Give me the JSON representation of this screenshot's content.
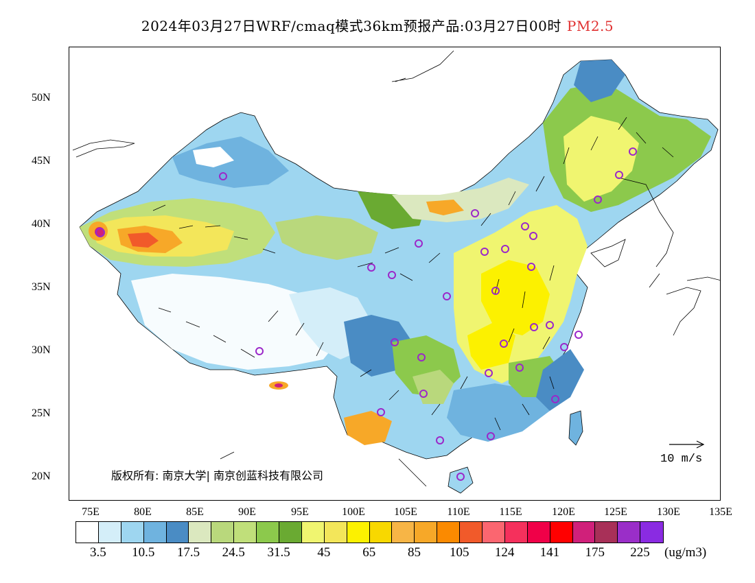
{
  "title": {
    "main": "2024年03月27日WRF/cmaq模式36km预报产品:03月27日00时",
    "variable": "PM2.5"
  },
  "lat_labels": [
    "50N",
    "45N",
    "40N",
    "35N",
    "30N",
    "25N",
    "20N"
  ],
  "lon_labels": [
    "75E",
    "80E",
    "85E",
    "90E",
    "95E",
    "100E",
    "105E",
    "110E",
    "115E",
    "120E",
    "125E",
    "130E",
    "135E"
  ],
  "colorbar": {
    "colors": [
      "#ffffff",
      "#d4eef9",
      "#9ed6f0",
      "#6fb3df",
      "#4a8cc4",
      "#dbe8bf",
      "#b9d87c",
      "#c0df7a",
      "#8cc94c",
      "#6aaa32",
      "#f0f570",
      "#f3e65a",
      "#fcf100",
      "#f8d800",
      "#f7b546",
      "#f7a828",
      "#fb8a00",
      "#f15a2a",
      "#fb6670",
      "#f5305c",
      "#f00048",
      "#ff0000",
      "#d0207a",
      "#a83058",
      "#9a2ec8",
      "#8a2be2"
    ],
    "labels": [
      "3.5",
      "10.5",
      "17.5",
      "24.5",
      "31.5",
      "45",
      "65",
      "85",
      "105",
      "124",
      "141",
      "175",
      "225"
    ],
    "unit": "(ug/m3)"
  },
  "copyright": "版权所有: 南京大学| 南京创蓝科技有限公司",
  "reference_vector": {
    "label": "10 m/s"
  },
  "city_markers_color": "#9b27c9"
}
